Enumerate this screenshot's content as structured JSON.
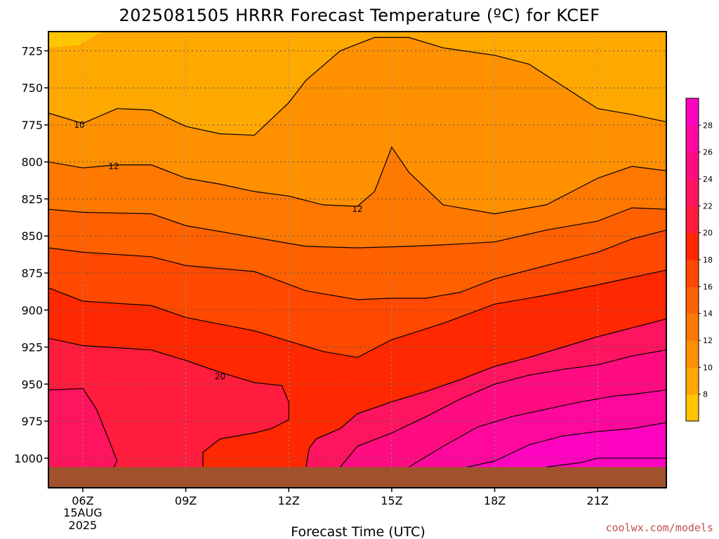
{
  "chart_data": {
    "type": "time-height contour",
    "title": "2025081505 HRRR Forecast Temperature (ºC) for KCEF",
    "xlabel": "Forecast Time (UTC)",
    "ylabel": "",
    "x_ticks": [
      {
        "hour": 6,
        "label": "06Z",
        "sub1": "15AUG",
        "sub2": "2025"
      },
      {
        "hour": 9,
        "label": "09Z"
      },
      {
        "hour": 12,
        "label": "12Z"
      },
      {
        "hour": 15,
        "label": "15Z"
      },
      {
        "hour": 18,
        "label": "18Z"
      },
      {
        "hour": 21,
        "label": "21Z"
      }
    ],
    "xlim_hours": [
      5,
      23
    ],
    "ylim_hPa": [
      712,
      1020
    ],
    "y_ticks": [
      725,
      750,
      775,
      800,
      825,
      850,
      875,
      900,
      925,
      950,
      975,
      1000
    ],
    "y_tick_labels": [
      "725",
      "750",
      "775",
      "800",
      "825",
      "850",
      "875",
      "900",
      "925",
      "950",
      "975",
      "1000"
    ],
    "grid": "dotted",
    "colorbar": {
      "placement": "right",
      "levels": [
        6,
        8,
        10,
        12,
        14,
        16,
        18,
        20,
        22,
        24,
        26,
        28,
        30
      ],
      "labels": [
        "8",
        "10",
        "12",
        "14",
        "16",
        "18",
        "20",
        "22",
        "24",
        "26",
        "28"
      ],
      "colors": [
        "#FFC600",
        "#FFA800",
        "#FF9000",
        "#FF7800",
        "#FF6000",
        "#FF4800",
        "#FF2800",
        "#FF1C3C",
        "#FF1460",
        "#FF0C80",
        "#FF089E",
        "#FF04C0"
      ]
    },
    "contour_labels": [
      {
        "text": "10",
        "hour": 5.9,
        "pres": 775
      },
      {
        "text": "12",
        "hour": 6.9,
        "pres": 803
      },
      {
        "text": "12",
        "hour": 14.0,
        "pres": 832
      },
      {
        "text": "20",
        "hour": 10.0,
        "pres": 945
      }
    ],
    "surface_color": "#A0522D",
    "surface_pres": 1006,
    "isotherms": [
      {
        "level": 10,
        "points": [
          [
            5,
            767
          ],
          [
            6.0,
            774
          ],
          [
            7.0,
            764
          ],
          [
            8.0,
            765
          ],
          [
            9.0,
            776
          ],
          [
            10.0,
            781
          ],
          [
            11.0,
            782
          ],
          [
            12.0,
            760
          ],
          [
            12.5,
            745
          ],
          [
            13.5,
            725
          ],
          [
            14.5,
            716
          ],
          [
            15.5,
            716
          ],
          [
            16.5,
            723
          ],
          [
            18.0,
            728
          ],
          [
            19.0,
            734
          ],
          [
            20.0,
            749
          ],
          [
            21.0,
            764
          ],
          [
            22.0,
            768
          ],
          [
            23,
            773
          ]
        ]
      },
      {
        "level": 12,
        "points": [
          [
            5,
            800
          ],
          [
            6.0,
            804
          ],
          [
            7.0,
            802
          ],
          [
            8.0,
            802
          ],
          [
            9.0,
            811
          ],
          [
            10.0,
            815
          ],
          [
            11.0,
            820
          ],
          [
            12.0,
            823
          ],
          [
            13.0,
            829
          ],
          [
            14.0,
            830
          ],
          [
            14.5,
            820
          ],
          [
            15.0,
            790
          ],
          [
            15.5,
            807
          ],
          [
            16.0,
            818
          ],
          [
            16.5,
            829
          ],
          [
            18.0,
            835
          ],
          [
            19.5,
            829
          ],
          [
            20.5,
            817
          ],
          [
            21.0,
            811
          ],
          [
            22.0,
            803
          ],
          [
            23,
            806
          ]
        ]
      },
      {
        "level": 14,
        "points": [
          [
            5,
            832
          ],
          [
            6.0,
            834
          ],
          [
            8.0,
            835
          ],
          [
            9.0,
            843
          ],
          [
            11.0,
            851
          ],
          [
            12.5,
            857
          ],
          [
            14.0,
            858
          ],
          [
            15.5,
            857
          ],
          [
            16.5,
            856
          ],
          [
            18.0,
            854
          ],
          [
            19.5,
            846
          ],
          [
            21.0,
            840
          ],
          [
            22.0,
            831
          ],
          [
            23,
            832
          ]
        ]
      },
      {
        "level": 16,
        "points": [
          [
            5,
            858
          ],
          [
            6.0,
            861
          ],
          [
            8.0,
            864
          ],
          [
            9.0,
            870
          ],
          [
            11.0,
            874
          ],
          [
            12.5,
            887
          ],
          [
            14.0,
            893
          ],
          [
            15.0,
            892
          ],
          [
            16.0,
            892
          ],
          [
            17.0,
            888
          ],
          [
            18.0,
            879
          ],
          [
            19.5,
            870
          ],
          [
            21.0,
            861
          ],
          [
            22.0,
            852
          ],
          [
            23,
            846
          ]
        ]
      },
      {
        "level": 18,
        "points": [
          [
            5,
            885
          ],
          [
            6.0,
            894
          ],
          [
            8.0,
            897
          ],
          [
            9.0,
            905
          ],
          [
            11.0,
            914
          ],
          [
            12.0,
            921
          ],
          [
            13.0,
            928
          ],
          [
            14.0,
            932
          ],
          [
            15.0,
            920
          ],
          [
            16.5,
            909
          ],
          [
            18.0,
            896
          ],
          [
            19.5,
            890
          ],
          [
            21.0,
            883
          ],
          [
            22.0,
            878
          ],
          [
            23,
            873
          ]
        ]
      },
      {
        "level": 20,
        "points": [
          [
            5,
            919
          ],
          [
            6.0,
            924
          ],
          [
            8.0,
            927
          ],
          [
            9.0,
            934
          ],
          [
            10.0,
            942
          ],
          [
            11.0,
            949
          ],
          [
            11.8,
            951
          ],
          [
            12.0,
            962
          ],
          [
            12.0,
            974
          ],
          [
            11.5,
            980
          ],
          [
            11.0,
            983
          ],
          [
            10.0,
            987
          ],
          [
            9.5,
            996
          ],
          [
            9.5,
            1006
          ]
        ]
      },
      {
        "level": 22,
        "points": [
          [
            5,
            954
          ],
          [
            6.0,
            953
          ],
          [
            6.4,
            967
          ],
          [
            6.8,
            990
          ],
          [
            7.0,
            1002
          ],
          [
            6.9,
            1006
          ]
        ]
      },
      {
        "level": 22.1,
        "points": [
          [
            12.5,
            1006
          ],
          [
            12.6,
            993
          ],
          [
            12.8,
            987
          ],
          [
            13.5,
            980
          ],
          [
            14.0,
            970
          ],
          [
            15.0,
            962
          ],
          [
            16.0,
            955
          ],
          [
            17.0,
            947
          ],
          [
            18.0,
            938
          ],
          [
            19.0,
            932
          ],
          [
            20.0,
            925
          ],
          [
            21.0,
            918
          ],
          [
            22.0,
            912
          ],
          [
            23,
            906
          ]
        ]
      },
      {
        "level": 24,
        "points": [
          [
            13.5,
            1006
          ],
          [
            14.0,
            992
          ],
          [
            15.0,
            983
          ],
          [
            16.0,
            972
          ],
          [
            17.0,
            960
          ],
          [
            18.0,
            950
          ],
          [
            19.0,
            944
          ],
          [
            20.0,
            940
          ],
          [
            21.0,
            937
          ],
          [
            22.0,
            931
          ],
          [
            23,
            927
          ]
        ]
      },
      {
        "level": 26,
        "points": [
          [
            15.5,
            1006
          ],
          [
            16.5,
            992
          ],
          [
            17.5,
            979
          ],
          [
            18.5,
            972
          ],
          [
            19.5,
            967
          ],
          [
            20.5,
            962
          ],
          [
            21.5,
            958
          ],
          [
            22.0,
            957
          ],
          [
            23,
            954
          ]
        ]
      },
      {
        "level": 28,
        "points": [
          [
            17.2,
            1006
          ],
          [
            18.0,
            1002
          ],
          [
            19.0,
            991
          ],
          [
            20.0,
            985
          ],
          [
            21.0,
            982
          ],
          [
            22.0,
            980
          ],
          [
            23,
            976
          ]
        ]
      },
      {
        "level": 29,
        "points": [
          [
            19.5,
            1006
          ],
          [
            20.5,
            1003
          ],
          [
            21.0,
            1000
          ],
          [
            22.0,
            1000
          ],
          [
            23,
            1000
          ]
        ]
      }
    ]
  }
}
